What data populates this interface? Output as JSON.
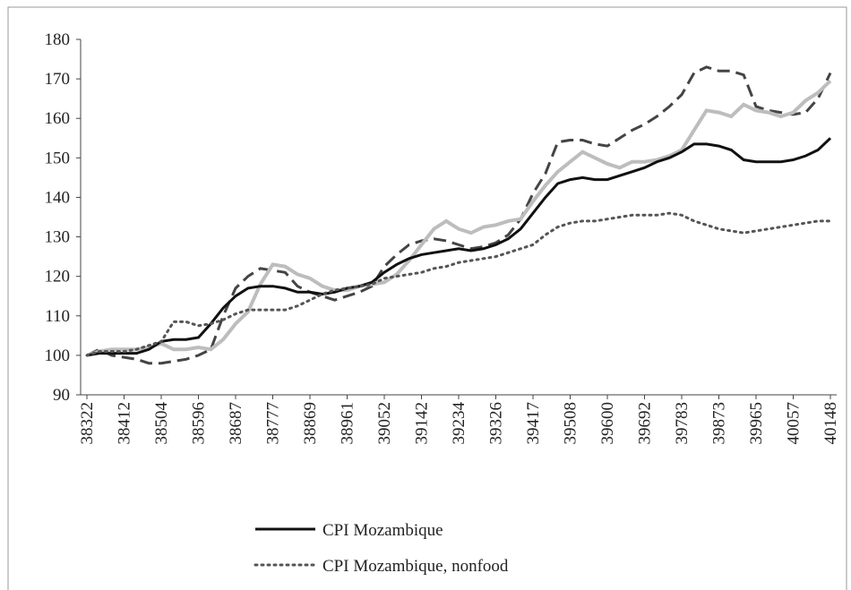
{
  "chart_data": {
    "type": "line",
    "categories": [
      38322,
      null,
      null,
      38412,
      null,
      null,
      38504,
      null,
      null,
      38596,
      null,
      null,
      38687,
      null,
      null,
      38777,
      null,
      null,
      38869,
      null,
      null,
      38961,
      null,
      null,
      39052,
      null,
      null,
      39142,
      null,
      null,
      39234,
      null,
      null,
      39326,
      null,
      null,
      39417,
      null,
      null,
      39508,
      null,
      null,
      39600,
      null,
      null,
      39692,
      null,
      null,
      39783,
      null,
      null,
      39873,
      null,
      null,
      39965,
      null,
      null,
      40057,
      null,
      null,
      40148
    ],
    "series": [
      {
        "color": "#444444",
        "style": "dashed",
        "values": [
          100,
          101.5,
          100,
          99.5,
          99,
          98,
          98,
          98.5,
          99,
          100,
          101.5,
          110,
          117,
          120,
          122,
          121.5,
          121,
          117.5,
          116,
          115,
          114,
          115,
          116,
          117.5,
          122.5,
          125.5,
          128,
          129,
          129.5,
          129,
          128,
          127,
          127.5,
          128.5,
          130.5,
          134.5,
          141,
          146,
          154,
          154.5,
          154.5,
          153.5,
          153,
          155,
          157,
          158.5,
          160.5,
          163,
          166,
          171.5,
          173,
          172,
          172,
          171,
          163,
          162,
          161.5,
          161,
          161.5,
          165,
          171.5
        ]
      },
      {
        "color": "#bdbdbd",
        "style": "solid",
        "values": [
          100,
          101,
          101.5,
          101.5,
          101.5,
          102,
          103,
          101.5,
          101.5,
          102,
          101.5,
          104,
          108,
          111,
          118,
          123,
          122.5,
          120.5,
          119.5,
          117.5,
          116.5,
          116.5,
          117.5,
          118,
          118.5,
          120.5,
          124,
          128,
          132,
          134,
          132,
          131,
          132.5,
          133,
          134,
          134.5,
          139,
          143,
          146.5,
          149,
          151.5,
          150,
          148.5,
          147.5,
          149,
          149,
          149.5,
          150.5,
          152,
          157,
          162,
          161.5,
          160.5,
          163.5,
          162,
          161.5,
          160.5,
          161.5,
          164.5,
          166.5,
          169.5
        ]
      },
      {
        "name": "CPI Mozambique",
        "color": "#111111",
        "style": "solid",
        "values": [
          100,
          100.5,
          100.5,
          100.5,
          100.5,
          101.5,
          103.5,
          104,
          104,
          104.5,
          108,
          112,
          115,
          117,
          117.5,
          117.5,
          117,
          116,
          116,
          115.5,
          116,
          117,
          117.5,
          118.5,
          121,
          123,
          124.5,
          125.5,
          126,
          126.5,
          127,
          126.5,
          127,
          128,
          129.5,
          132,
          136,
          140,
          143.5,
          144.5,
          145,
          144.5,
          144.5,
          145.5,
          146.5,
          147.5,
          149,
          150,
          151.5,
          153.5,
          153.5,
          153,
          152,
          149.5,
          149,
          149,
          149,
          149.5,
          150.5,
          152,
          155
        ]
      },
      {
        "name": "CPI Mozambique, nonfood",
        "color": "#555555",
        "style": "dotted",
        "values": [
          100,
          101,
          101,
          101,
          101.5,
          102.5,
          103.5,
          108.5,
          108.5,
          107.5,
          108,
          109,
          110.5,
          111.5,
          111.5,
          111.5,
          111.5,
          112.5,
          114,
          115.5,
          116.5,
          117,
          117.5,
          118,
          119.5,
          120,
          120.5,
          121,
          122,
          122.5,
          123.5,
          124,
          124.5,
          125,
          126,
          127,
          128,
          130.5,
          132.5,
          133.5,
          134,
          134,
          134.5,
          135,
          135.5,
          135.5,
          135.5,
          136,
          135.5,
          134,
          133,
          132,
          131.5,
          131,
          131.5,
          132,
          132.5,
          133,
          133.5,
          134,
          134
        ]
      }
    ],
    "ylim": [
      90,
      180
    ],
    "yticks": [
      90,
      100,
      110,
      120,
      130,
      140,
      150,
      160,
      170,
      180
    ],
    "grid": false,
    "legend": "bottom"
  }
}
